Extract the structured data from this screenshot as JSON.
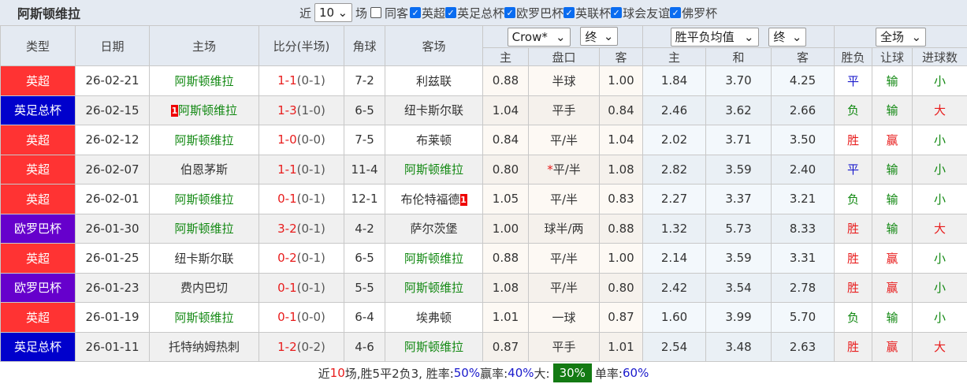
{
  "title": "阿斯顿维拉",
  "filters": {
    "near_label": "近",
    "count": "10",
    "games_label": "场",
    "same_label": "同客",
    "leagues": [
      "英超",
      "英足总杯",
      "欧罗巴杯",
      "英联杯",
      "球会友谊",
      "佛罗杯"
    ]
  },
  "headers": {
    "type": "类型",
    "date": "日期",
    "home": "主场",
    "score": "比分(半场)",
    "corner": "角球",
    "away": "客场",
    "company": "Crow*",
    "company_time": "终",
    "euro": "胜平负均值",
    "euro_time": "终",
    "scope": "全场",
    "ah_home": "主",
    "ah_line": "盘口",
    "ah_away": "客",
    "eu_home": "主",
    "eu_draw": "和",
    "eu_away": "客",
    "wl": "胜负",
    "hcp": "让球",
    "goals": "进球数"
  },
  "colors": {
    "英超": "#ff3333",
    "英足总杯": "#0000cc",
    "欧罗巴杯": "#6600cc",
    "team": "#118811",
    "win": "#e81c1c",
    "draw": "#1a1acc",
    "lose": "#118811"
  },
  "rows": [
    {
      "league": "英超",
      "date": "26-02-21",
      "home": "阿斯顿维拉",
      "home_rc": "",
      "score": "1-1",
      "ht": "(0-1)",
      "corner": "7-2",
      "away": "利兹联",
      "away_rc": "",
      "oh": "0.88",
      "line": "半球",
      "oa": "1.00",
      "eh": "1.84",
      "ed": "3.70",
      "ea": "4.25",
      "wl": "平",
      "hcp": "输",
      "goals": "小",
      "team_side": "home"
    },
    {
      "league": "英足总杯",
      "date": "26-02-15",
      "home": "阿斯顿维拉",
      "home_rc": "1",
      "score": "1-3",
      "ht": "(1-0)",
      "corner": "6-5",
      "away": "纽卡斯尔联",
      "away_rc": "",
      "oh": "1.04",
      "line": "平手",
      "oa": "0.84",
      "eh": "2.46",
      "ed": "3.62",
      "ea": "2.66",
      "wl": "负",
      "hcp": "输",
      "goals": "大",
      "team_side": "home"
    },
    {
      "league": "英超",
      "date": "26-02-12",
      "home": "阿斯顿维拉",
      "home_rc": "",
      "score": "1-0",
      "ht": "(0-0)",
      "corner": "7-5",
      "away": "布莱顿",
      "away_rc": "",
      "oh": "0.84",
      "line": "平/半",
      "oa": "1.04",
      "eh": "2.02",
      "ed": "3.71",
      "ea": "3.50",
      "wl": "胜",
      "hcp": "赢",
      "goals": "小",
      "team_side": "home"
    },
    {
      "league": "英超",
      "date": "26-02-07",
      "home": "伯恩茅斯",
      "home_rc": "",
      "score": "1-1",
      "ht": "(0-1)",
      "corner": "11-4",
      "away": "阿斯顿维拉",
      "away_rc": "",
      "oh": "0.80",
      "line_mark": "*",
      "line": "平/半",
      "oa": "1.08",
      "eh": "2.82",
      "ed": "3.59",
      "ea": "2.40",
      "wl": "平",
      "hcp": "输",
      "goals": "小",
      "team_side": "away"
    },
    {
      "league": "英超",
      "date": "26-02-01",
      "home": "阿斯顿维拉",
      "home_rc": "",
      "score": "0-1",
      "ht": "(0-1)",
      "corner": "12-1",
      "away": "布伦特福德",
      "away_rc": "1",
      "oh": "1.05",
      "line": "平/半",
      "oa": "0.83",
      "eh": "2.27",
      "ed": "3.37",
      "ea": "3.21",
      "wl": "负",
      "hcp": "输",
      "goals": "小",
      "team_side": "home"
    },
    {
      "league": "欧罗巴杯",
      "date": "26-01-30",
      "home": "阿斯顿维拉",
      "home_rc": "",
      "score": "3-2",
      "ht": "(0-1)",
      "corner": "4-2",
      "away": "萨尔茨堡",
      "away_rc": "",
      "oh": "1.00",
      "line": "球半/两",
      "oa": "0.88",
      "eh": "1.32",
      "ed": "5.73",
      "ea": "8.33",
      "wl": "胜",
      "hcp": "输",
      "goals": "大",
      "team_side": "home"
    },
    {
      "league": "英超",
      "date": "26-01-25",
      "home": "纽卡斯尔联",
      "home_rc": "",
      "score": "0-2",
      "ht": "(0-1)",
      "corner": "6-5",
      "away": "阿斯顿维拉",
      "away_rc": "",
      "oh": "0.88",
      "line": "平/半",
      "oa": "1.00",
      "eh": "2.14",
      "ed": "3.59",
      "ea": "3.31",
      "wl": "胜",
      "hcp": "赢",
      "goals": "小",
      "team_side": "away"
    },
    {
      "league": "欧罗巴杯",
      "date": "26-01-23",
      "home": "费内巴切",
      "home_rc": "",
      "score": "0-1",
      "ht": "(0-1)",
      "corner": "5-5",
      "away": "阿斯顿维拉",
      "away_rc": "",
      "oh": "1.08",
      "line": "平/半",
      "oa": "0.80",
      "eh": "2.42",
      "ed": "3.54",
      "ea": "2.78",
      "wl": "胜",
      "hcp": "赢",
      "goals": "小",
      "team_side": "away"
    },
    {
      "league": "英超",
      "date": "26-01-19",
      "home": "阿斯顿维拉",
      "home_rc": "",
      "score": "0-1",
      "ht": "(0-0)",
      "corner": "6-4",
      "away": "埃弗顿",
      "away_rc": "",
      "oh": "1.01",
      "line": "一球",
      "oa": "0.87",
      "eh": "1.60",
      "ed": "3.99",
      "ea": "5.70",
      "wl": "负",
      "hcp": "输",
      "goals": "小",
      "team_side": "home"
    },
    {
      "league": "英足总杯",
      "date": "26-01-11",
      "home": "托特纳姆热刺",
      "home_rc": "",
      "score": "1-2",
      "ht": "(0-2)",
      "corner": "4-6",
      "away": "阿斯顿维拉",
      "away_rc": "",
      "oh": "0.87",
      "line": "平手",
      "oa": "1.01",
      "eh": "2.54",
      "ed": "3.48",
      "ea": "2.63",
      "wl": "胜",
      "hcp": "赢",
      "goals": "大",
      "team_side": "away"
    }
  ],
  "summary": {
    "p1": "近",
    "n": "10",
    "p2": "场,胜5平2负3, 胜率:",
    "win_rate": "50%",
    "p3": " 赢率:",
    "cover_rate": "40%",
    "p4": " 大:",
    "over_rate": "30%",
    "p5": " 单率:",
    "odd_rate": "60%"
  }
}
